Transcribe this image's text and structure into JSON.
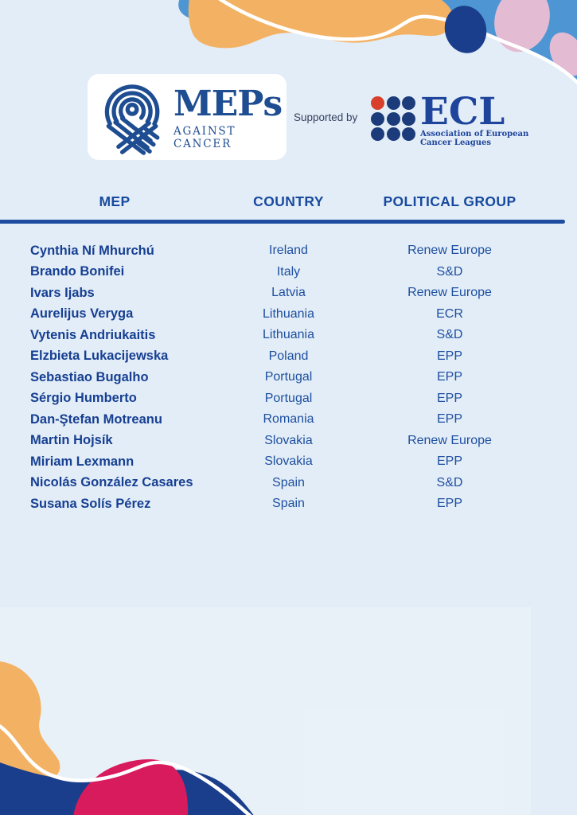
{
  "header": {
    "logo": {
      "title": "MEPs",
      "subtitle": "AGAINST CANCER",
      "icon": "cancer-ribbon-icon"
    },
    "supported_by": "Supported by",
    "ecl": {
      "name": "ECL",
      "tagline_line1": "Association of European",
      "tagline_line2": "Cancer Leagues",
      "dot_grid": {
        "rows": 3,
        "cols": 3,
        "red_dot_index": 0,
        "red_color": "#D8402C",
        "blue_color": "#1B3B7B"
      }
    }
  },
  "table": {
    "columns": [
      "MEP",
      "COUNTRY",
      "POLITICAL GROUP"
    ],
    "rows": [
      {
        "mep": "Cynthia Ní Mhurchú",
        "country": "Ireland",
        "group": "Renew Europe"
      },
      {
        "mep": "Brando Bonifei",
        "country": "Italy",
        "group": "S&D"
      },
      {
        "mep": "Ivars Ijabs",
        "country": "Latvia",
        "group": "Renew Europe"
      },
      {
        "mep": "Aurelijus Veryga",
        "country": "Lithuania",
        "group": "ECR"
      },
      {
        "mep": "Vytenis Andriukaitis",
        "country": "Lithuania",
        "group": "S&D"
      },
      {
        "mep": "Elzbieta Lukacijewska",
        "country": "Poland",
        "group": "EPP"
      },
      {
        "mep": "Sebastiao Bugalho",
        "country": "Portugal",
        "group": "EPP"
      },
      {
        "mep": "Sérgio Humberto",
        "country": "Portugal",
        "group": "EPP"
      },
      {
        "mep": "Dan-Ştefan Motreanu",
        "country": "Romania",
        "group": "EPP"
      },
      {
        "mep": "Martin Hojsík",
        "country": "Slovakia",
        "group": "Renew Europe"
      },
      {
        "mep": "Miriam Lexmann",
        "country": "Slovakia",
        "group": "EPP"
      },
      {
        "mep": "Nicolás González Casares",
        "country": "Spain",
        "group": "S&D"
      },
      {
        "mep": "Susana Solís Pérez",
        "country": "Spain",
        "group": "EPP"
      }
    ]
  },
  "colors": {
    "background": "#E3EDF7",
    "text_name_blue": "#163F92",
    "text_value_blue": "#1D4FA0",
    "header_blue": "#174A9E",
    "divider_blue": "#1E4DA0",
    "logo_blue": "#1F4D92",
    "ecl_blue": "#1E449C",
    "ecl_red": "#D8402C",
    "decor_steel_blue": "#4E96D3",
    "decor_orange": "#F3B263",
    "decor_navy": "#1A3E8C",
    "decor_pink": "#E3BCD3",
    "decor_crimson": "#D81B5C",
    "decor_line_white": "#FFFFFF"
  }
}
